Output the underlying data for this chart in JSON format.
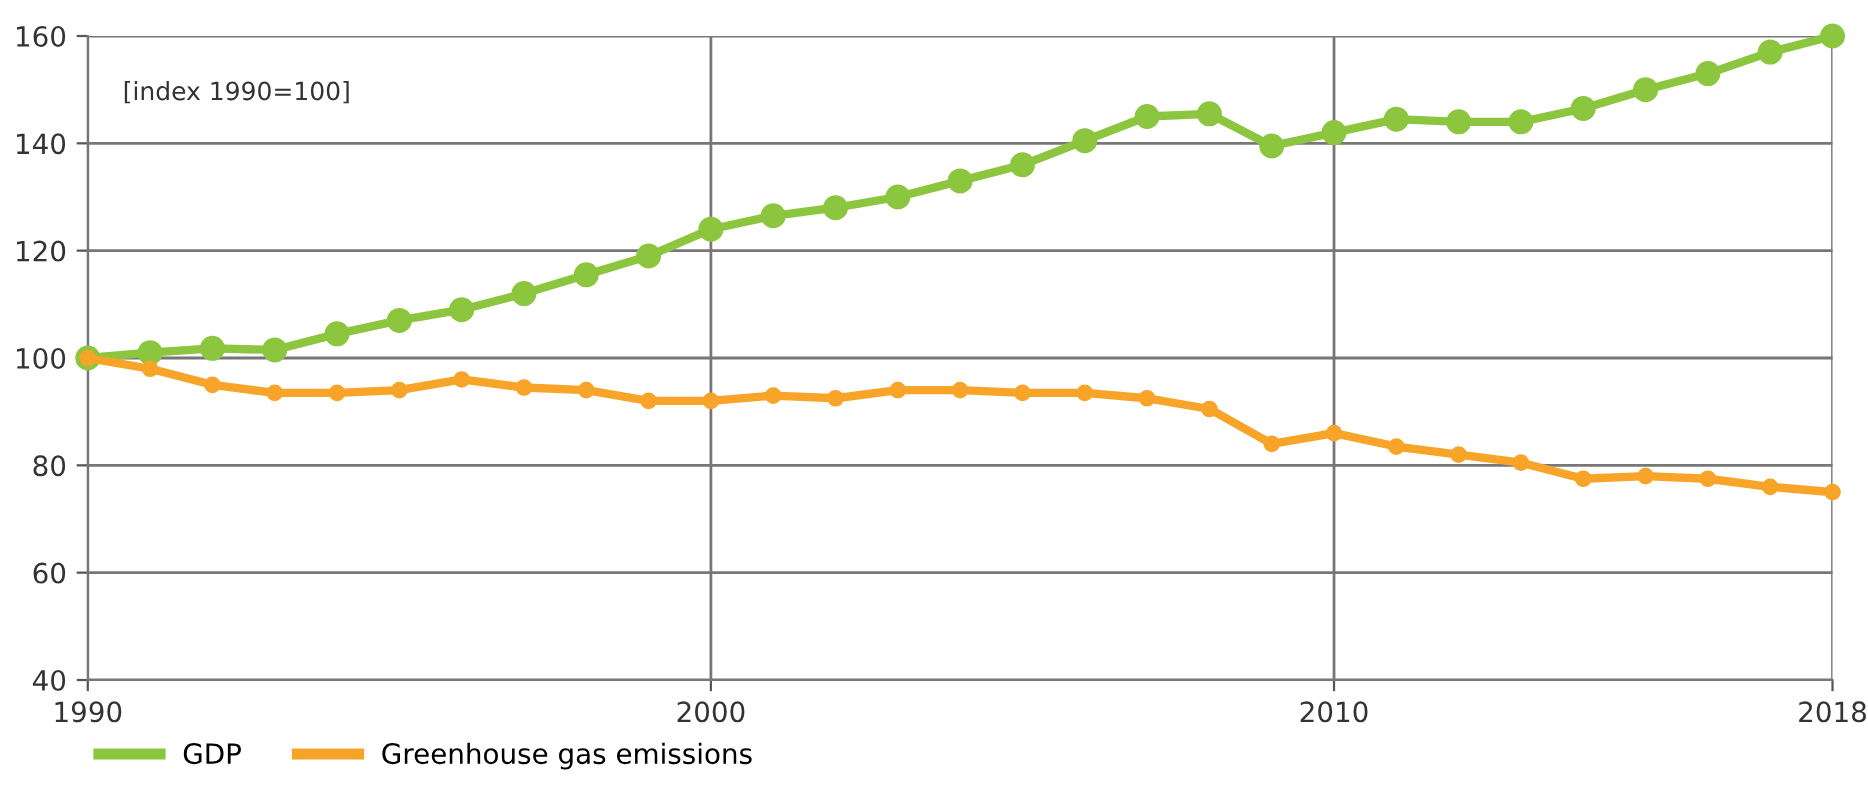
{
  "chart_data": {
    "type": "line",
    "x": [
      1990,
      1991,
      1992,
      1993,
      1994,
      1995,
      1996,
      1997,
      1998,
      1999,
      2000,
      2001,
      2002,
      2003,
      2004,
      2005,
      2006,
      2007,
      2008,
      2009,
      2010,
      2011,
      2012,
      2013,
      2014,
      2015,
      2016,
      2017,
      2018
    ],
    "series": [
      {
        "name": "GDP",
        "color": "#8cc63f",
        "values": [
          100,
          101,
          101.8,
          101.5,
          104.5,
          107,
          109,
          112,
          115.5,
          119,
          124,
          126.5,
          128,
          130,
          133,
          136,
          140.5,
          145,
          145.5,
          139.5,
          142,
          144.5,
          144,
          144,
          146.5,
          150,
          153,
          157,
          160
        ]
      },
      {
        "name": "Greenhouse gas emissions",
        "color": "#f7a428",
        "values": [
          100,
          98,
          95,
          93.5,
          93.5,
          94,
          96,
          94.5,
          94,
          92,
          92,
          93,
          92.5,
          94,
          94,
          93.5,
          93.5,
          92.5,
          90.5,
          84,
          86,
          83.5,
          82,
          80.5,
          77.5,
          78,
          77.5,
          76,
          75
        ]
      }
    ],
    "annotations": [
      "[index 1990=100]"
    ],
    "xlim": [
      1990,
      2018
    ],
    "xticks": [
      1990,
      2000,
      2010,
      2018
    ],
    "ylim": [
      40,
      160
    ],
    "yticks": [
      40,
      60,
      80,
      100,
      120,
      140,
      160
    ],
    "grid": true,
    "legend": "bottom left",
    "marker": "circle",
    "line_style": "solid"
  }
}
